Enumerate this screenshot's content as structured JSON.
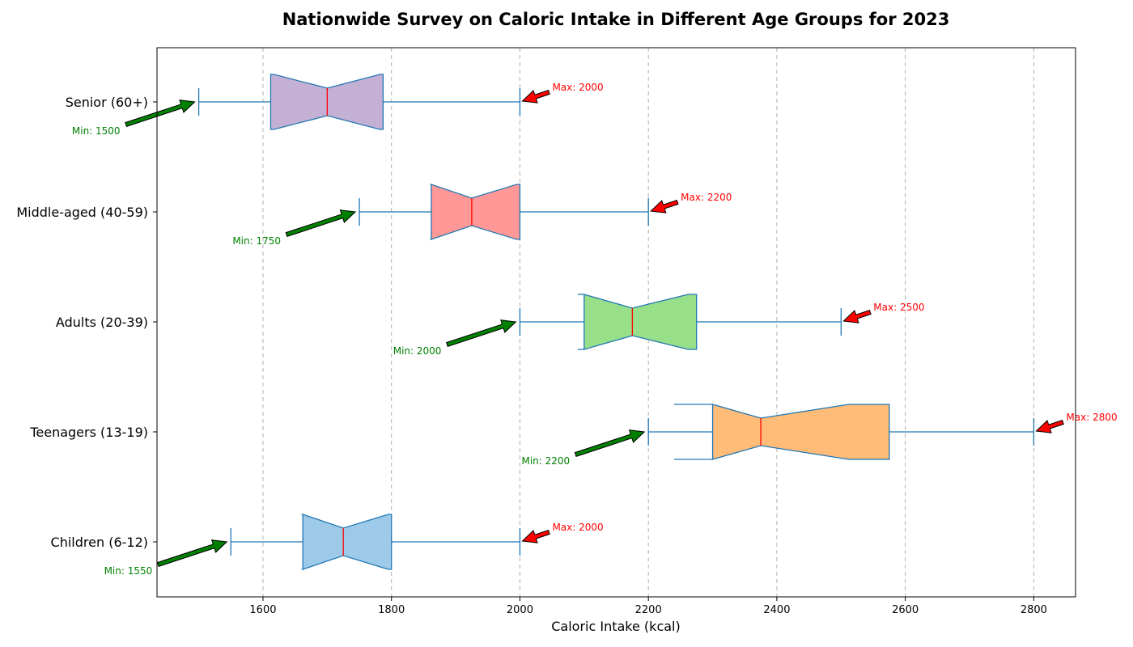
{
  "chart_data": {
    "type": "boxplot",
    "orientation": "horizontal",
    "notched": true,
    "title": "Nationwide Survey on Caloric Intake in Different Age Groups for 2023",
    "xlabel": "Caloric Intake (kcal)",
    "ylabel": "",
    "xlim": [
      1435,
      2865
    ],
    "xticks": [
      1600,
      1800,
      2000,
      2200,
      2400,
      2600,
      2800
    ],
    "grid": "vertical dashed",
    "categories": [
      "Children (6-12)",
      "Teenagers (13-19)",
      "Adults (20-39)",
      "Middle-aged (40-59)",
      "Senior (60+)"
    ],
    "boxes": [
      {
        "label": "Children (6-12)",
        "min": 1550,
        "q1": 1662,
        "median": 1725,
        "q3": 1800,
        "max": 2000,
        "notch_low": 1660,
        "notch_high": 1795,
        "color": "#9ecae9"
      },
      {
        "label": "Teenagers (13-19)",
        "min": 2200,
        "q1": 2300,
        "median": 2375,
        "q3": 2575,
        "max": 2800,
        "notch_low": 2240,
        "notch_high": 2512,
        "color": "#ffbb78"
      },
      {
        "label": "Adults (20-39)",
        "min": 2000,
        "q1": 2100,
        "median": 2175,
        "q3": 2275,
        "max": 2500,
        "notch_low": 2090,
        "notch_high": 2262,
        "color": "#98df8a"
      },
      {
        "label": "Middle-aged (40-59)",
        "min": 1750,
        "q1": 1862,
        "median": 1925,
        "q3": 2000,
        "max": 2200,
        "notch_low": 1860,
        "notch_high": 1995,
        "color": "#ff9896"
      },
      {
        "label": "Senior (60+)",
        "min": 1500,
        "q1": 1612,
        "median": 1700,
        "q3": 1787,
        "max": 2000,
        "notch_low": 1617,
        "notch_high": 1782,
        "color": "#c5b0d5"
      }
    ],
    "annotations": {
      "min": [
        "Min: 1550",
        "Min: 2200",
        "Min: 2000",
        "Min: 1750",
        "Min: 1500"
      ],
      "max": [
        "Max: 2000",
        "Max: 2800",
        "Max: 2500",
        "Max: 2200",
        "Max: 2000"
      ]
    },
    "colors": {
      "box_edge": "#1f77b4",
      "median": "#ff0000",
      "min_arrow": "#008000",
      "max_arrow": "#ff0000",
      "grid": "#b0b0b0"
    }
  }
}
